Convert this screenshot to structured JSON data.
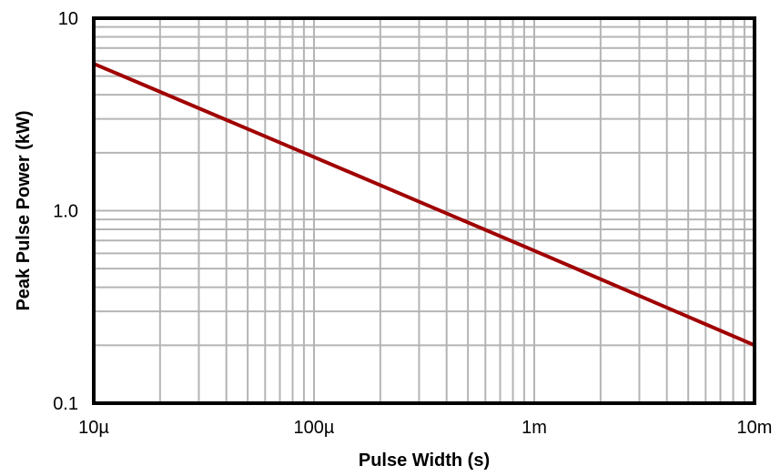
{
  "chart_data": {
    "type": "line",
    "title": "",
    "xlabel": "Pulse Width (s)",
    "ylabel": "Peak Pulse Power (kW)",
    "x_scale": "log",
    "y_scale": "log",
    "xlim": [
      1e-05,
      0.01
    ],
    "ylim": [
      0.1,
      10
    ],
    "grid": true,
    "x_ticks": [
      {
        "value": 1e-05,
        "label": "10µ"
      },
      {
        "value": 0.0001,
        "label": "100µ"
      },
      {
        "value": 0.001,
        "label": "1m"
      },
      {
        "value": 0.01,
        "label": "10m"
      }
    ],
    "y_ticks": [
      {
        "value": 0.1,
        "label": "0.1"
      },
      {
        "value": 1,
        "label": "1.0"
      },
      {
        "value": 10,
        "label": "10"
      }
    ],
    "series": [
      {
        "color": "#a00000",
        "x": [
          1e-05,
          0.0001,
          0.001,
          0.01
        ],
        "y": [
          5.8,
          1.9,
          0.62,
          0.2
        ]
      }
    ]
  }
}
